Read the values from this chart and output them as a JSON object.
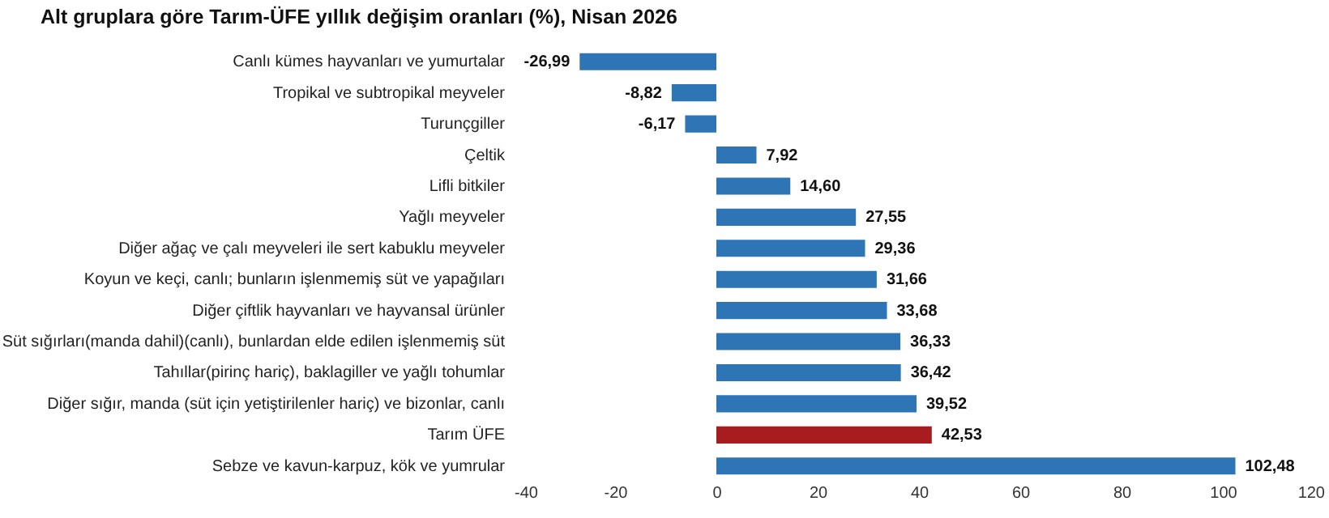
{
  "chart_data": {
    "type": "bar",
    "orientation": "horizontal",
    "title": "Alt gruplara göre Tarım-ÜFE yıllık değişim oranları (%), Nisan 2026",
    "categories": [
      "Canlı kümes hayvanları ve yumurtalar",
      "Tropikal ve subtropikal meyveler",
      "Turunçgiller",
      "Çeltik",
      "Lifli bitkiler",
      "Yağlı meyveler",
      "Diğer ağaç ve çalı meyveleri ile sert kabuklu meyveler",
      "Koyun ve keçi, canlı; bunların işlenmemiş süt ve yapağıları",
      "Diğer çiftlik hayvanları ve hayvansal ürünler",
      "Süt sığırları(manda dahil)(canlı), bunlardan elde edilen işlenmemiş süt",
      "Tahıllar(pirinç hariç), baklagiller ve yağlı tohumlar",
      "Diğer sığır, manda (süt için yetiştirilenler hariç) ve bizonlar, canlı",
      "Tarım ÜFE",
      "Sebze ve kavun-karpuz, kök ve yumrular"
    ],
    "values": [
      -26.99,
      -8.82,
      -6.17,
      7.92,
      14.6,
      27.55,
      29.36,
      31.66,
      33.68,
      36.33,
      36.42,
      39.52,
      42.53,
      102.48
    ],
    "value_labels": [
      "-26,99",
      "-8,82",
      "-6,17",
      "7,92",
      "14,60",
      "27,55",
      "29,36",
      "31,66",
      "33,68",
      "36,33",
      "36,42",
      "39,52",
      "42,53",
      "102,48"
    ],
    "colors": [
      "#2e75b6",
      "#2e75b6",
      "#2e75b6",
      "#2e75b6",
      "#2e75b6",
      "#2e75b6",
      "#2e75b6",
      "#2e75b6",
      "#2e75b6",
      "#2e75b6",
      "#2e75b6",
      "#2e75b6",
      "#a61c1f",
      "#2e75b6"
    ],
    "xlim": [
      -40,
      120
    ],
    "xticks": [
      -40,
      -20,
      0,
      20,
      40,
      60,
      80,
      100,
      120
    ],
    "grid": false
  }
}
